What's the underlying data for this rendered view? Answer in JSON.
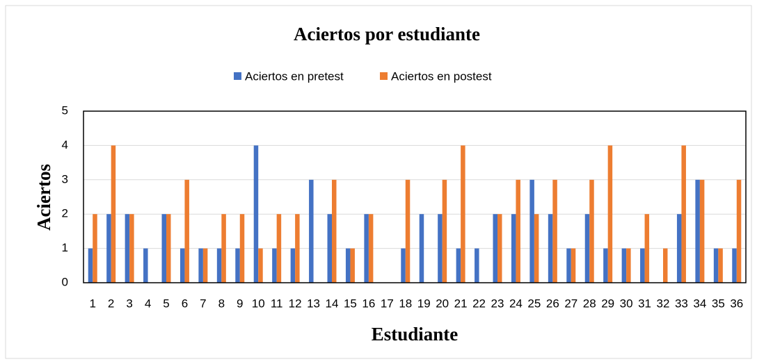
{
  "chart_data": {
    "type": "bar",
    "title": "Aciertos por estudiante",
    "xlabel": "Estudiante",
    "ylabel": "Aciertos",
    "categories": [
      "1",
      "2",
      "3",
      "4",
      "5",
      "6",
      "7",
      "8",
      "9",
      "10",
      "11",
      "12",
      "13",
      "14",
      "15",
      "16",
      "17",
      "18",
      "19",
      "20",
      "21",
      "22",
      "23",
      "24",
      "25",
      "26",
      "27",
      "28",
      "29",
      "30",
      "31",
      "32",
      "33",
      "34",
      "35",
      "36"
    ],
    "series": [
      {
        "name": "Aciertos en pretest",
        "color": "#4472c4",
        "values": [
          1,
          2,
          2,
          1,
          2,
          1,
          1,
          1,
          1,
          4,
          1,
          1,
          3,
          2,
          1,
          2,
          0,
          1,
          2,
          2,
          1,
          1,
          2,
          2,
          3,
          2,
          1,
          2,
          1,
          1,
          1,
          0,
          2,
          3,
          1,
          1
        ]
      },
      {
        "name": "Aciertos en postest",
        "color": "#ed7d31",
        "values": [
          2,
          4,
          2,
          0,
          2,
          3,
          1,
          2,
          2,
          1,
          2,
          2,
          0,
          3,
          1,
          2,
          0,
          3,
          0,
          3,
          4,
          0,
          2,
          3,
          2,
          3,
          1,
          3,
          4,
          1,
          2,
          1,
          4,
          3,
          1,
          3
        ]
      }
    ],
    "ylim": [
      0,
      5
    ],
    "yticks": [
      0,
      1,
      2,
      3,
      4,
      5
    ],
    "grid": true,
    "legend": "top"
  }
}
